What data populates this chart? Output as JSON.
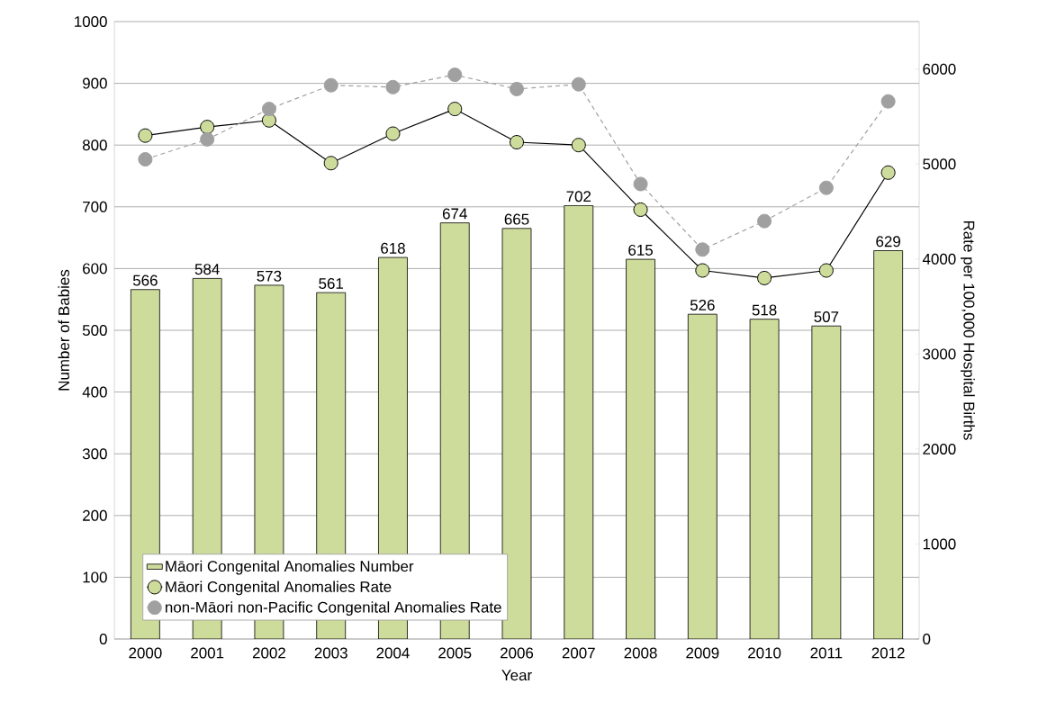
{
  "chart_data": {
    "type": "bar",
    "xlabel": "Year",
    "ylabel": "Number of Babies",
    "y2label": "Rate per 100,000  Hospital Births",
    "categories": [
      "2000",
      "2001",
      "2002",
      "2003",
      "2004",
      "2005",
      "2006",
      "2007",
      "2008",
      "2009",
      "2010",
      "2011",
      "2012"
    ],
    "series": [
      {
        "name": "Māori Congenital Anomalies Number",
        "color": "#cddb9b",
        "values": [
          566,
          584,
          573,
          561,
          618,
          674,
          665,
          702,
          615,
          526,
          518,
          507,
          629
        ],
        "value_labels": [
          "566",
          "584",
          "573",
          "561",
          "618",
          "674",
          "665",
          "702",
          "615",
          "526",
          "518",
          "507",
          "629"
        ]
      },
      {
        "name": "Māori Congenital Anomalies Rate",
        "type": "line",
        "axis": "y2",
        "color": "#000000",
        "marker": "circle",
        "line_style": "solid",
        "values": [
          5300,
          5390,
          5460,
          5010,
          5320,
          5580,
          5230,
          5200,
          4520,
          3880,
          3800,
          3880,
          4910
        ]
      },
      {
        "name": "non-Māori non-Pacific Congenital Anomalies Rate",
        "type": "line",
        "axis": "y2",
        "color": "#a0a0a0",
        "marker": "circle",
        "line_style": "dashed",
        "values": [
          5050,
          5260,
          5580,
          5830,
          5810,
          5940,
          5790,
          5840,
          4790,
          4100,
          4400,
          4750,
          5660
        ]
      }
    ],
    "ylim": [
      0,
      1000
    ],
    "yticks": [
      0,
      100,
      200,
      300,
      400,
      500,
      600,
      700,
      800,
      900,
      1000
    ],
    "y2lim": [
      0,
      6500
    ],
    "y2ticks": [
      0,
      1000,
      2000,
      3000,
      4000,
      5000,
      6000
    ],
    "grid": "y",
    "legend": "bottom left"
  }
}
